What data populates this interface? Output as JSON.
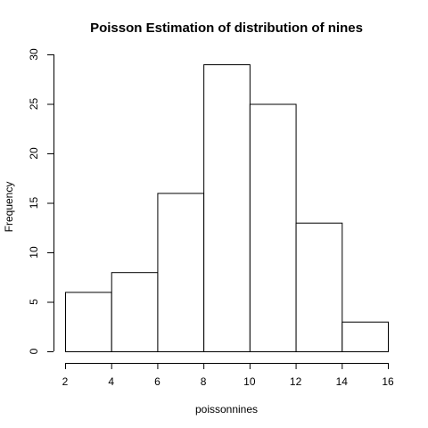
{
  "chart_data": {
    "type": "bar",
    "title": "Poisson Estimation of distribution of nines",
    "xlabel": "poissonnines",
    "ylabel": "Frequency",
    "bins": [
      {
        "from": 2,
        "to": 4,
        "value": 6
      },
      {
        "from": 4,
        "to": 6,
        "value": 8
      },
      {
        "from": 6,
        "to": 8,
        "value": 16
      },
      {
        "from": 8,
        "to": 10,
        "value": 29
      },
      {
        "from": 10,
        "to": 12,
        "value": 25
      },
      {
        "from": 12,
        "to": 14,
        "value": 13
      },
      {
        "from": 14,
        "to": 16,
        "value": 3
      }
    ],
    "xlim": [
      2,
      16
    ],
    "ylim": [
      0,
      30
    ],
    "xticks": [
      "2",
      "4",
      "6",
      "8",
      "10",
      "12",
      "14",
      "16"
    ],
    "yticks": [
      "0",
      "5",
      "10",
      "15",
      "20",
      "25",
      "30"
    ],
    "grid": false
  }
}
